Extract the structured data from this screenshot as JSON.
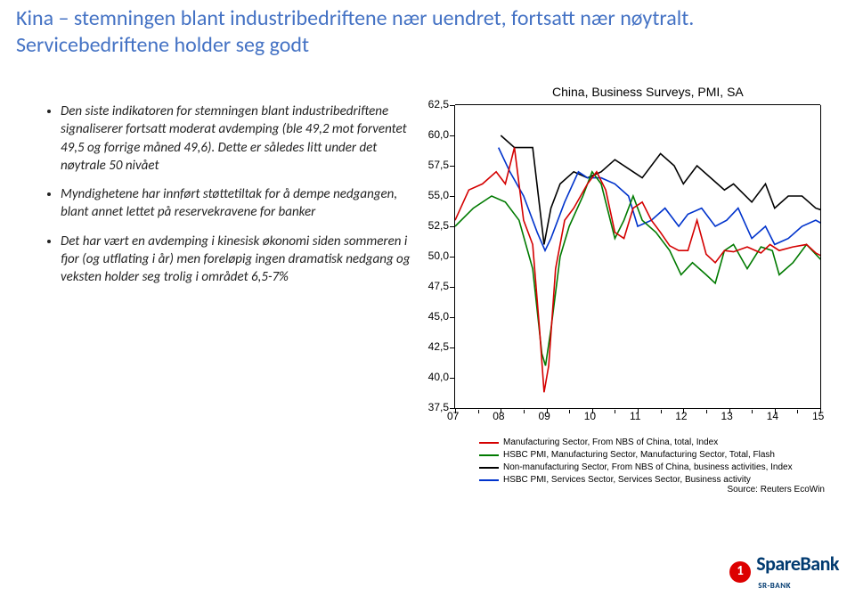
{
  "title": "Kina – stemningen blant industribedriftene nær uendret, fortsatt nær nøytralt. Servicebedriftene holder seg godt",
  "bullets": [
    "Den siste indikatoren for stemningen blant industribedriftene signaliserer fortsatt moderat avdemping (ble 49,2 mot forventet 49,5 og forrige måned 49,6). Dette er således litt under det nøytrale 50 nivået",
    "Myndighetene har innført støttetiltak for å dempe nedgangen, blant annet lettet på reservekravene for banker",
    "Det har vært en avdemping i kinesisk økonomi siden sommeren i fjor (og utflating i år) men foreløpig ingen dramatisk nedgang og veksten holder seg trolig i området 6,5-7%"
  ],
  "chart": {
    "title": "China, Business Surveys, PMI, SA",
    "y": {
      "min": 37.5,
      "max": 62.5,
      "step": 2.5,
      "ticks": [
        "62,5",
        "60,0",
        "57,5",
        "55,0",
        "52,5",
        "50,0",
        "47,5",
        "45,0",
        "42,5",
        "40,0",
        "37,5"
      ]
    },
    "x": {
      "min": 2007,
      "max": 2015,
      "ticks": [
        "07",
        "08",
        "09",
        "10",
        "11",
        "12",
        "13",
        "14",
        "15"
      ]
    },
    "legend": [
      {
        "color": "#d40000",
        "label": "Manufacturing Sector, From NBS of China, total, Index"
      },
      {
        "color": "#007a00",
        "label": "HSBC PMI, Manufacturing Sector, Manufacturing Sector, Total, Flash"
      },
      {
        "color": "#000000",
        "label": "Non-manufacturing Sector, From NBS of China, business activities, Index"
      },
      {
        "color": "#0033cc",
        "label": "HSBC PMI, Services Sector, Services Sector, Business activity"
      }
    ],
    "source": "Source: Reuters EcoWin",
    "series": {
      "red": [
        [
          2007.0,
          53.0
        ],
        [
          2007.3,
          55.5
        ],
        [
          2007.6,
          56.0
        ],
        [
          2007.9,
          57.0
        ],
        [
          2008.1,
          56.0
        ],
        [
          2008.3,
          59.0
        ],
        [
          2008.5,
          53.0
        ],
        [
          2008.7,
          51.0
        ],
        [
          2008.85,
          44.0
        ],
        [
          2008.95,
          38.8
        ],
        [
          2009.05,
          41.0
        ],
        [
          2009.2,
          49.0
        ],
        [
          2009.4,
          53.0
        ],
        [
          2009.6,
          54.0
        ],
        [
          2009.9,
          56.0
        ],
        [
          2010.1,
          57.0
        ],
        [
          2010.3,
          55.5
        ],
        [
          2010.5,
          52.0
        ],
        [
          2010.7,
          51.5
        ],
        [
          2010.9,
          54.0
        ],
        [
          2011.1,
          54.5
        ],
        [
          2011.3,
          53.0
        ],
        [
          2011.5,
          52.0
        ],
        [
          2011.7,
          50.9
        ],
        [
          2011.9,
          50.5
        ],
        [
          2012.1,
          50.5
        ],
        [
          2012.3,
          53.0
        ],
        [
          2012.5,
          50.2
        ],
        [
          2012.7,
          49.5
        ],
        [
          2012.9,
          50.5
        ],
        [
          2013.1,
          50.4
        ],
        [
          2013.4,
          50.8
        ],
        [
          2013.7,
          50.3
        ],
        [
          2013.9,
          51.0
        ],
        [
          2014.1,
          50.5
        ],
        [
          2014.4,
          50.8
        ],
        [
          2014.7,
          51.0
        ],
        [
          2014.9,
          50.3
        ],
        [
          2015.1,
          49.9
        ],
        [
          2015.15,
          49.2
        ]
      ],
      "green": [
        [
          2007.0,
          52.5
        ],
        [
          2007.4,
          54.0
        ],
        [
          2007.8,
          55.0
        ],
        [
          2008.1,
          54.5
        ],
        [
          2008.4,
          53.0
        ],
        [
          2008.7,
          49.0
        ],
        [
          2008.9,
          42.0
        ],
        [
          2008.98,
          41.0
        ],
        [
          2009.1,
          44.0
        ],
        [
          2009.3,
          50.0
        ],
        [
          2009.5,
          52.5
        ],
        [
          2009.8,
          55.0
        ],
        [
          2010.0,
          57.0
        ],
        [
          2010.2,
          56.0
        ],
        [
          2010.5,
          51.5
        ],
        [
          2010.7,
          53.0
        ],
        [
          2010.9,
          55.0
        ],
        [
          2011.1,
          53.0
        ],
        [
          2011.4,
          52.0
        ],
        [
          2011.7,
          50.5
        ],
        [
          2011.95,
          48.5
        ],
        [
          2012.2,
          49.5
        ],
        [
          2012.5,
          48.5
        ],
        [
          2012.7,
          47.8
        ],
        [
          2012.9,
          50.5
        ],
        [
          2013.1,
          51.0
        ],
        [
          2013.4,
          49.0
        ],
        [
          2013.7,
          50.8
        ],
        [
          2013.95,
          50.5
        ],
        [
          2014.1,
          48.5
        ],
        [
          2014.4,
          49.5
        ],
        [
          2014.7,
          51.0
        ],
        [
          2014.95,
          50.0
        ],
        [
          2015.15,
          49.2
        ]
      ],
      "black": [
        [
          2008.0,
          60.0
        ],
        [
          2008.3,
          59.0
        ],
        [
          2008.7,
          59.0
        ],
        [
          2008.95,
          51.0
        ],
        [
          2009.1,
          54.0
        ],
        [
          2009.3,
          56.0
        ],
        [
          2009.6,
          57.0
        ],
        [
          2009.9,
          56.5
        ],
        [
          2010.2,
          57.0
        ],
        [
          2010.5,
          58.0
        ],
        [
          2010.9,
          57.0
        ],
        [
          2011.1,
          56.5
        ],
        [
          2011.5,
          58.5
        ],
        [
          2011.8,
          57.5
        ],
        [
          2012.0,
          56.0
        ],
        [
          2012.3,
          57.5
        ],
        [
          2012.6,
          56.5
        ],
        [
          2012.9,
          55.5
        ],
        [
          2013.1,
          56.0
        ],
        [
          2013.5,
          54.5
        ],
        [
          2013.8,
          56.0
        ],
        [
          2014.0,
          54.0
        ],
        [
          2014.3,
          55.0
        ],
        [
          2014.6,
          55.0
        ],
        [
          2014.9,
          54.0
        ],
        [
          2015.15,
          53.7
        ]
      ],
      "blue": [
        [
          2007.95,
          59.0
        ],
        [
          2008.2,
          57.0
        ],
        [
          2008.5,
          55.0
        ],
        [
          2008.8,
          52.0
        ],
        [
          2008.97,
          50.5
        ],
        [
          2009.1,
          51.5
        ],
        [
          2009.4,
          54.5
        ],
        [
          2009.7,
          57.0
        ],
        [
          2009.9,
          56.5
        ],
        [
          2010.2,
          56.5
        ],
        [
          2010.5,
          56.0
        ],
        [
          2010.8,
          55.0
        ],
        [
          2011.0,
          52.5
        ],
        [
          2011.3,
          53.0
        ],
        [
          2011.6,
          54.0
        ],
        [
          2011.9,
          52.5
        ],
        [
          2012.1,
          53.5
        ],
        [
          2012.4,
          54.0
        ],
        [
          2012.7,
          52.5
        ],
        [
          2012.95,
          53.0
        ],
        [
          2013.2,
          54.0
        ],
        [
          2013.5,
          51.5
        ],
        [
          2013.8,
          52.5
        ],
        [
          2014.0,
          51.0
        ],
        [
          2014.3,
          51.5
        ],
        [
          2014.6,
          52.5
        ],
        [
          2014.9,
          53.0
        ],
        [
          2015.15,
          52.5
        ]
      ]
    }
  },
  "logo": {
    "brand": "SpareBank",
    "sub": "SR-BANK"
  }
}
